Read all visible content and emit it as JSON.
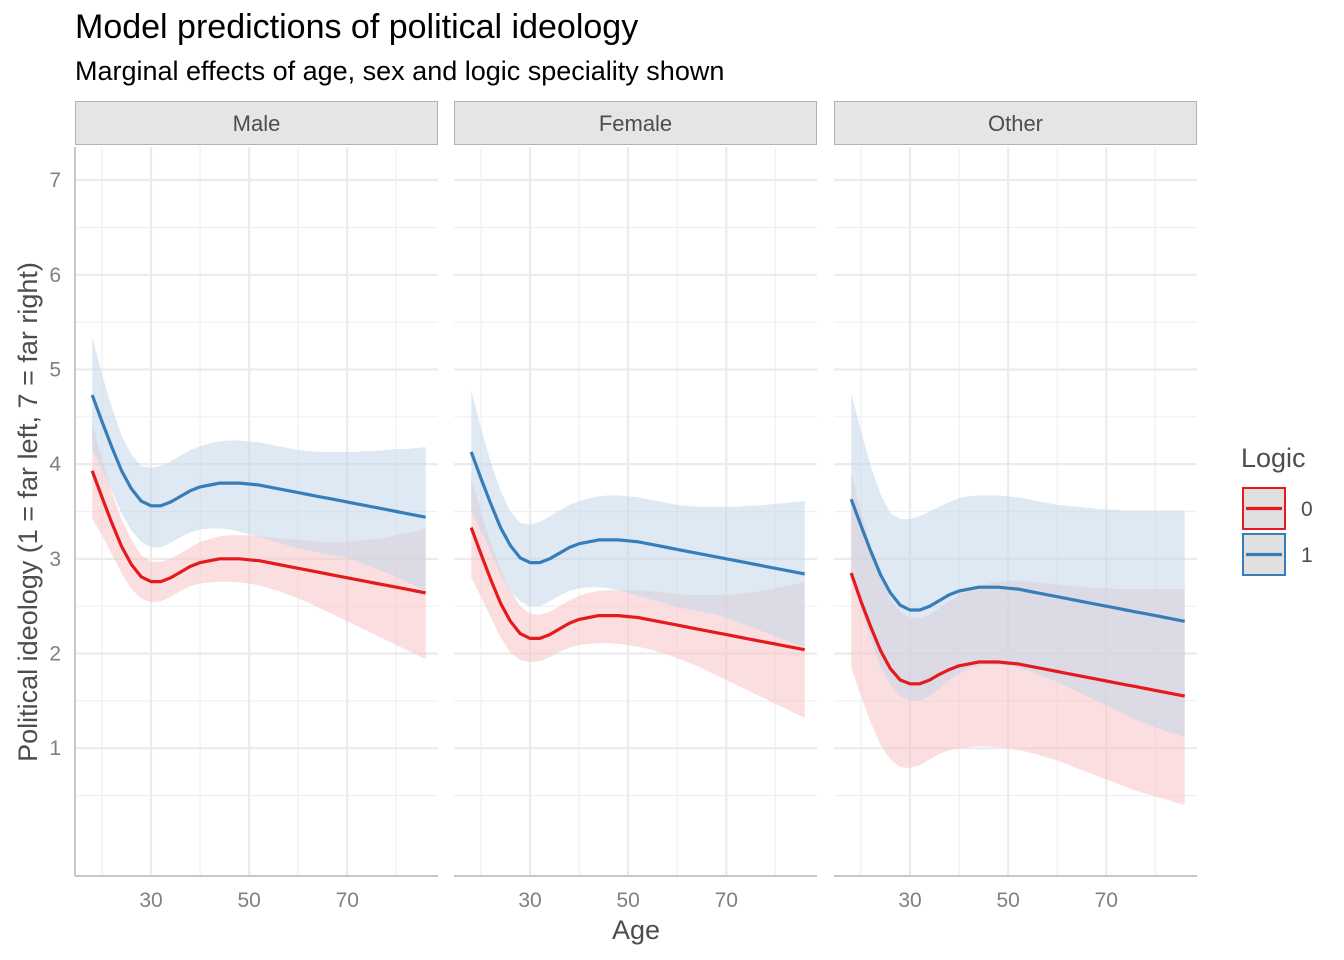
{
  "chart_data": {
    "type": "line",
    "title": "Model predictions of political ideology",
    "subtitle": "Marginal effects of age, sex and logic speciality shown",
    "xlabel": "Age",
    "ylabel": "Political ideology (1 = far left, 7 = far right)",
    "x_ticks": [
      30,
      50,
      70
    ],
    "y_ticks": [
      1,
      2,
      3,
      4,
      5,
      6,
      7
    ],
    "xlim": [
      14.5,
      88.5
    ],
    "ylim": [
      -0.35,
      7.35
    ],
    "grid": true,
    "legend": {
      "title": "Logic",
      "position": "right",
      "entries": [
        {
          "label": "0",
          "color": "#e41a1c"
        },
        {
          "label": "1",
          "color": "#377eb8"
        }
      ]
    },
    "colors": {
      "0": "#e41a1c",
      "1": "#377eb8"
    },
    "x": [
      18,
      20,
      22,
      24,
      26,
      28,
      30,
      32,
      34,
      36,
      38,
      40,
      42,
      44,
      46,
      48,
      50,
      52,
      54,
      56,
      58,
      60,
      62,
      64,
      66,
      68,
      70,
      72,
      74,
      76,
      78,
      80,
      82,
      84,
      86
    ],
    "panels": [
      {
        "label": "Male",
        "series": [
          {
            "logic": "0",
            "values": [
              3.93,
              3.65,
              3.38,
              3.13,
              2.94,
              2.81,
              2.76,
              2.76,
              2.8,
              2.86,
              2.92,
              2.96,
              2.98,
              3.0,
              3.0,
              3.0,
              2.99,
              2.98,
              2.96,
              2.94,
              2.92,
              2.9,
              2.88,
              2.86,
              2.84,
              2.82,
              2.8,
              2.78,
              2.76,
              2.74,
              2.72,
              2.7,
              2.68,
              2.66,
              2.64
            ],
            "lower": [
              3.42,
              3.25,
              3.05,
              2.85,
              2.68,
              2.58,
              2.54,
              2.55,
              2.6,
              2.66,
              2.71,
              2.74,
              2.75,
              2.76,
              2.76,
              2.75,
              2.74,
              2.72,
              2.69,
              2.66,
              2.62,
              2.58,
              2.54,
              2.49,
              2.44,
              2.39,
              2.34,
              2.29,
              2.24,
              2.19,
              2.14,
              2.09,
              2.04,
              1.99,
              1.94
            ],
            "upper": [
              4.45,
              4.05,
              3.7,
              3.42,
              3.2,
              3.04,
              2.97,
              2.97,
              3.0,
              3.06,
              3.12,
              3.18,
              3.21,
              3.24,
              3.25,
              3.25,
              3.25,
              3.24,
              3.23,
              3.22,
              3.21,
              3.2,
              3.19,
              3.18,
              3.18,
              3.18,
              3.18,
              3.19,
              3.2,
              3.21,
              3.23,
              3.25,
              3.27,
              3.29,
              3.32
            ]
          },
          {
            "logic": "1",
            "values": [
              4.73,
              4.45,
              4.18,
              3.93,
              3.74,
              3.61,
              3.56,
              3.56,
              3.6,
              3.66,
              3.72,
              3.76,
              3.78,
              3.8,
              3.8,
              3.8,
              3.79,
              3.78,
              3.76,
              3.74,
              3.72,
              3.7,
              3.68,
              3.66,
              3.64,
              3.62,
              3.6,
              3.58,
              3.56,
              3.54,
              3.52,
              3.5,
              3.48,
              3.46,
              3.44
            ],
            "lower": [
              4.15,
              3.95,
              3.72,
              3.48,
              3.3,
              3.18,
              3.12,
              3.12,
              3.17,
              3.23,
              3.28,
              3.31,
              3.32,
              3.32,
              3.31,
              3.29,
              3.26,
              3.23,
              3.2,
              3.17,
              3.14,
              3.11,
              3.09,
              3.07,
              3.05,
              3.03,
              3.01,
              2.97,
              2.93,
              2.89,
              2.85,
              2.81,
              2.76,
              2.71,
              2.66
            ],
            "upper": [
              5.35,
              4.95,
              4.6,
              4.3,
              4.1,
              3.98,
              3.96,
              3.98,
              4.03,
              4.09,
              4.15,
              4.19,
              4.22,
              4.24,
              4.25,
              4.25,
              4.24,
              4.23,
              4.21,
              4.19,
              4.17,
              4.15,
              4.14,
              4.13,
              4.13,
              4.13,
              4.13,
              4.13,
              4.14,
              4.14,
              4.15,
              4.16,
              4.16,
              4.17,
              4.18
            ]
          }
        ]
      },
      {
        "label": "Female",
        "series": [
          {
            "logic": "0",
            "values": [
              3.33,
              3.05,
              2.78,
              2.53,
              2.34,
              2.21,
              2.16,
              2.16,
              2.2,
              2.26,
              2.32,
              2.36,
              2.38,
              2.4,
              2.4,
              2.4,
              2.39,
              2.38,
              2.36,
              2.34,
              2.32,
              2.3,
              2.28,
              2.26,
              2.24,
              2.22,
              2.2,
              2.18,
              2.16,
              2.14,
              2.12,
              2.1,
              2.08,
              2.06,
              2.04
            ],
            "lower": [
              2.8,
              2.6,
              2.38,
              2.17,
              2.01,
              1.93,
              1.91,
              1.92,
              1.96,
              2.02,
              2.06,
              2.09,
              2.1,
              2.11,
              2.11,
              2.1,
              2.09,
              2.07,
              2.05,
              2.02,
              1.99,
              1.95,
              1.91,
              1.87,
              1.82,
              1.77,
              1.72,
              1.67,
              1.62,
              1.57,
              1.52,
              1.47,
              1.42,
              1.37,
              1.32
            ],
            "upper": [
              3.85,
              3.5,
              3.17,
              2.89,
              2.67,
              2.5,
              2.42,
              2.41,
              2.44,
              2.5,
              2.56,
              2.61,
              2.64,
              2.66,
              2.67,
              2.67,
              2.67,
              2.67,
              2.66,
              2.65,
              2.64,
              2.63,
              2.62,
              2.62,
              2.62,
              2.62,
              2.62,
              2.63,
              2.64,
              2.65,
              2.67,
              2.69,
              2.71,
              2.73,
              2.76
            ]
          },
          {
            "logic": "1",
            "values": [
              4.13,
              3.85,
              3.58,
              3.33,
              3.14,
              3.01,
              2.96,
              2.96,
              3.0,
              3.06,
              3.12,
              3.16,
              3.18,
              3.2,
              3.2,
              3.2,
              3.19,
              3.18,
              3.16,
              3.14,
              3.12,
              3.1,
              3.08,
              3.06,
              3.04,
              3.02,
              3.0,
              2.98,
              2.96,
              2.94,
              2.92,
              2.9,
              2.88,
              2.86,
              2.84
            ],
            "lower": [
              3.5,
              3.3,
              3.07,
              2.84,
              2.66,
              2.55,
              2.5,
              2.5,
              2.55,
              2.61,
              2.66,
              2.69,
              2.7,
              2.7,
              2.69,
              2.67,
              2.64,
              2.61,
              2.58,
              2.55,
              2.52,
              2.49,
              2.47,
              2.45,
              2.43,
              2.41,
              2.38,
              2.34,
              2.3,
              2.26,
              2.22,
              2.18,
              2.14,
              2.1,
              2.06
            ],
            "upper": [
              4.78,
              4.38,
              4.02,
              3.72,
              3.5,
              3.38,
              3.36,
              3.39,
              3.45,
              3.51,
              3.57,
              3.61,
              3.64,
              3.66,
              3.67,
              3.67,
              3.66,
              3.65,
              3.63,
              3.61,
              3.59,
              3.57,
              3.56,
              3.55,
              3.55,
              3.55,
              3.55,
              3.55,
              3.56,
              3.56,
              3.57,
              3.58,
              3.59,
              3.6,
              3.61
            ]
          }
        ]
      },
      {
        "label": "Other",
        "series": [
          {
            "logic": "0",
            "values": [
              2.85,
              2.55,
              2.28,
              2.03,
              1.84,
              1.72,
              1.68,
              1.68,
              1.72,
              1.78,
              1.83,
              1.87,
              1.89,
              1.91,
              1.91,
              1.91,
              1.9,
              1.89,
              1.87,
              1.85,
              1.83,
              1.81,
              1.79,
              1.77,
              1.75,
              1.73,
              1.71,
              1.69,
              1.67,
              1.65,
              1.63,
              1.61,
              1.59,
              1.57,
              1.55
            ],
            "lower": [
              1.85,
              1.55,
              1.27,
              1.03,
              0.88,
              0.8,
              0.79,
              0.82,
              0.88,
              0.94,
              0.98,
              1.0,
              1.01,
              1.02,
              1.02,
              1.01,
              1.0,
              0.98,
              0.96,
              0.93,
              0.9,
              0.87,
              0.83,
              0.79,
              0.75,
              0.71,
              0.67,
              0.63,
              0.59,
              0.55,
              0.52,
              0.49,
              0.46,
              0.43,
              0.4
            ],
            "upper": [
              3.9,
              3.5,
              3.12,
              2.82,
              2.58,
              2.44,
              2.38,
              2.37,
              2.41,
              2.48,
              2.55,
              2.62,
              2.67,
              2.71,
              2.74,
              2.76,
              2.77,
              2.77,
              2.76,
              2.75,
              2.74,
              2.73,
              2.72,
              2.71,
              2.7,
              2.69,
              2.69,
              2.68,
              2.68,
              2.68,
              2.68,
              2.68,
              2.68,
              2.68,
              2.68
            ]
          },
          {
            "logic": "1",
            "values": [
              3.63,
              3.35,
              3.08,
              2.83,
              2.64,
              2.51,
              2.46,
              2.46,
              2.5,
              2.56,
              2.62,
              2.66,
              2.68,
              2.7,
              2.7,
              2.7,
              2.69,
              2.68,
              2.66,
              2.64,
              2.62,
              2.6,
              2.58,
              2.56,
              2.54,
              2.52,
              2.5,
              2.48,
              2.46,
              2.44,
              2.42,
              2.4,
              2.38,
              2.36,
              2.34
            ],
            "lower": [
              2.85,
              2.48,
              2.14,
              1.86,
              1.67,
              1.55,
              1.5,
              1.5,
              1.55,
              1.63,
              1.72,
              1.79,
              1.84,
              1.87,
              1.88,
              1.88,
              1.87,
              1.85,
              1.82,
              1.78,
              1.74,
              1.7,
              1.65,
              1.6,
              1.55,
              1.5,
              1.45,
              1.4,
              1.35,
              1.3,
              1.26,
              1.22,
              1.18,
              1.15,
              1.12
            ],
            "upper": [
              4.75,
              4.35,
              3.98,
              3.68,
              3.48,
              3.42,
              3.42,
              3.45,
              3.5,
              3.55,
              3.6,
              3.64,
              3.66,
              3.67,
              3.67,
              3.67,
              3.66,
              3.65,
              3.63,
              3.61,
              3.59,
              3.57,
              3.56,
              3.55,
              3.54,
              3.53,
              3.52,
              3.52,
              3.51,
              3.51,
              3.51,
              3.51,
              3.51,
              3.51,
              3.51
            ]
          }
        ]
      }
    ]
  }
}
